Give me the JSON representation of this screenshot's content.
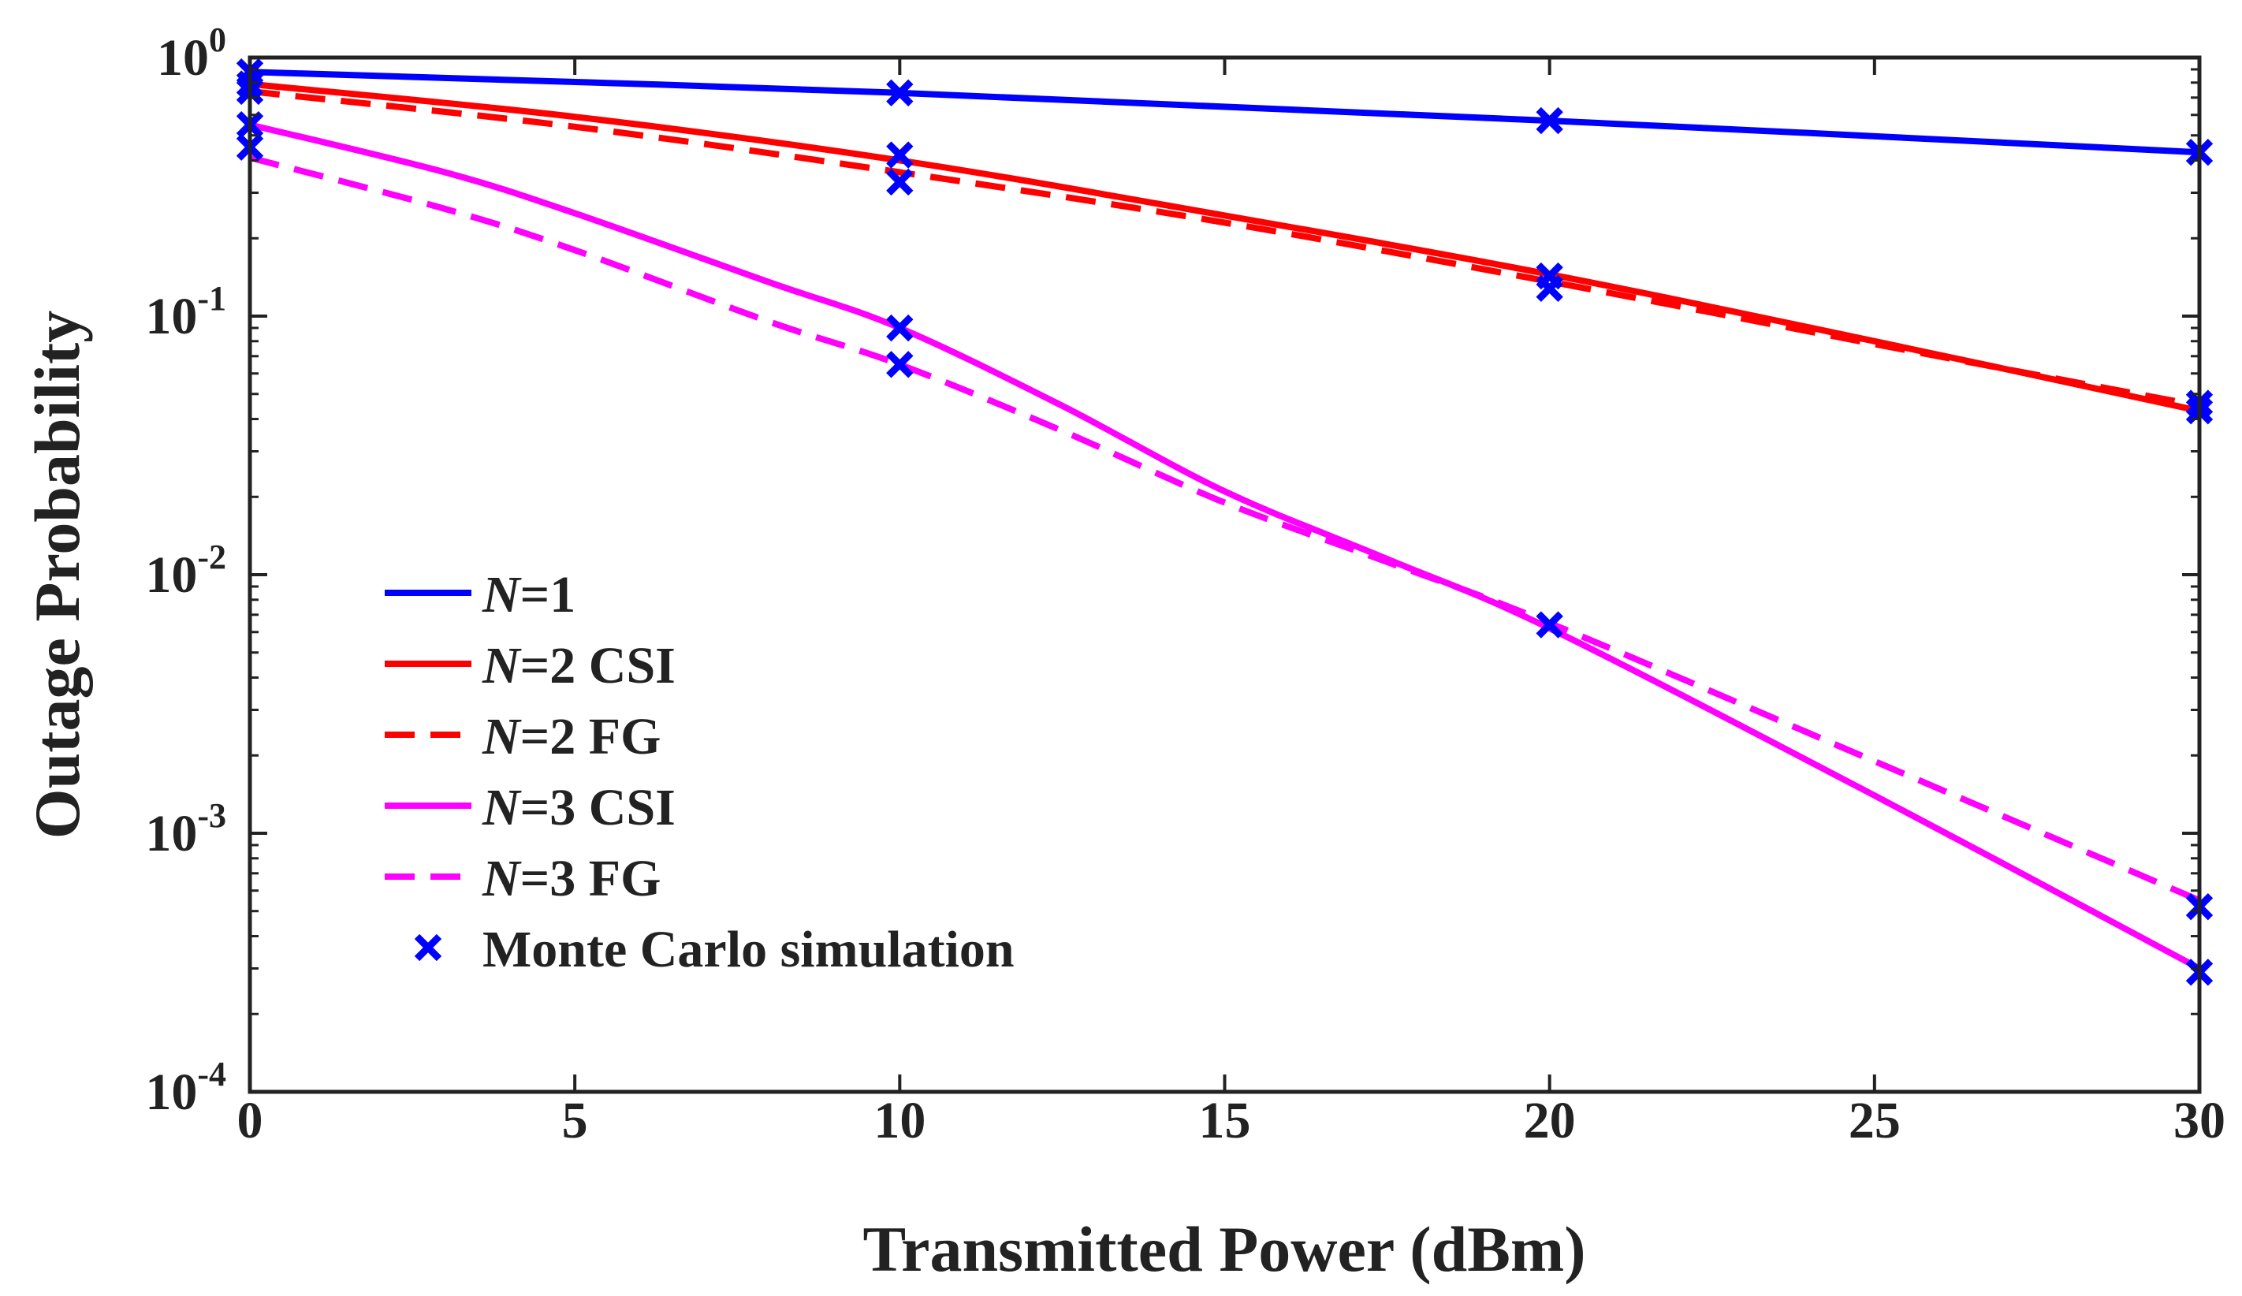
{
  "chart_data": {
    "type": "line",
    "title": "",
    "xlabel": "Transmitted Power (dBm)",
    "ylabel": "Outage Probability",
    "xlim": [
      0,
      30
    ],
    "ylim": [
      0.0001,
      1
    ],
    "yscale": "log",
    "xticks": [
      "0",
      "5",
      "10",
      "15",
      "20",
      "25",
      "30"
    ],
    "yticks": [
      {
        "base": "10",
        "exp": "-4",
        "value": 0.0001
      },
      {
        "base": "10",
        "exp": "-3",
        "value": 0.001
      },
      {
        "base": "10",
        "exp": "-2",
        "value": 0.01
      },
      {
        "base": "10",
        "exp": "-1",
        "value": 0.1
      },
      {
        "base": "10",
        "exp": "0",
        "value": 1
      }
    ],
    "legend_position": "lower-left",
    "series": [
      {
        "name": "N=1",
        "italic": "N",
        "suffix": "=1",
        "color": "#0000ff",
        "dash": "solid",
        "x": [
          0,
          10,
          20,
          30
        ],
        "values": [
          0.88,
          0.73,
          0.57,
          0.43
        ]
      },
      {
        "name": "N=2 CSI",
        "italic": "N",
        "suffix": "=2 CSI",
        "color": "#ff0000",
        "dash": "solid",
        "x": [
          0,
          5,
          10,
          15,
          20,
          25,
          30
        ],
        "values": [
          0.79,
          0.59,
          0.4,
          0.245,
          0.145,
          0.08,
          0.043
        ]
      },
      {
        "name": "N=2 FG",
        "italic": "N",
        "suffix": "=2 FG",
        "color": "#ff0000",
        "dash": "dashed",
        "x": [
          0,
          5,
          10,
          15,
          20,
          25,
          30
        ],
        "values": [
          0.74,
          0.54,
          0.36,
          0.23,
          0.136,
          0.078,
          0.045
        ]
      },
      {
        "name": "N=3 CSI",
        "italic": "N",
        "suffix": "=3 CSI",
        "color": "#ff00ff",
        "dash": "solid",
        "x": [
          0,
          3,
          5,
          8,
          10,
          12.5,
          15,
          17.5,
          20,
          25,
          30
        ],
        "values": [
          0.55,
          0.36,
          0.25,
          0.135,
          0.09,
          0.045,
          0.021,
          0.0115,
          0.0062,
          0.0014,
          0.0003
        ]
      },
      {
        "name": "N=3 FG",
        "italic": "N",
        "suffix": "=3 FG",
        "color": "#ff00ff",
        "dash": "dashed",
        "x": [
          0,
          3,
          5,
          8,
          10,
          12.5,
          15,
          17.5,
          20,
          25,
          30
        ],
        "values": [
          0.41,
          0.26,
          0.18,
          0.095,
          0.065,
          0.036,
          0.019,
          0.0112,
          0.0065,
          0.0019,
          0.00055
        ]
      }
    ],
    "simulation": {
      "name": "Monte Carlo simulation",
      "color": "#0000ff",
      "marker": "x",
      "points": [
        {
          "x": 0,
          "y": 0.88
        },
        {
          "x": 0,
          "y": 0.79
        },
        {
          "x": 0,
          "y": 0.74
        },
        {
          "x": 0,
          "y": 0.55
        },
        {
          "x": 0,
          "y": 0.45
        },
        {
          "x": 10,
          "y": 0.73
        },
        {
          "x": 10,
          "y": 0.42
        },
        {
          "x": 10,
          "y": 0.33
        },
        {
          "x": 10,
          "y": 0.09
        },
        {
          "x": 10,
          "y": 0.065
        },
        {
          "x": 20,
          "y": 0.57
        },
        {
          "x": 20,
          "y": 0.143
        },
        {
          "x": 20,
          "y": 0.128
        },
        {
          "x": 20,
          "y": 0.0064
        },
        {
          "x": 30,
          "y": 0.43
        },
        {
          "x": 30,
          "y": 0.046
        },
        {
          "x": 30,
          "y": 0.043
        },
        {
          "x": 30,
          "y": 0.00052
        },
        {
          "x": 30,
          "y": 0.00029
        }
      ]
    }
  }
}
